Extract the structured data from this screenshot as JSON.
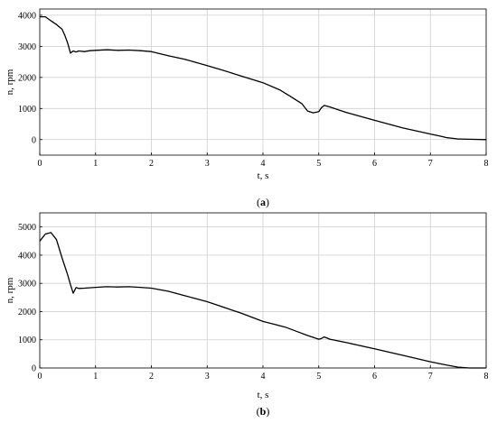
{
  "chart_data": [
    {
      "type": "line",
      "caption": "a",
      "xlabel": "t, s",
      "ylabel": "n, rpm",
      "xlim": [
        0,
        8
      ],
      "ylim": [
        -500,
        4200
      ],
      "xticks": [
        0,
        1,
        2,
        3,
        4,
        5,
        6,
        7,
        8
      ],
      "yticks": [
        0,
        1000,
        2000,
        3000,
        4000
      ],
      "grid": true,
      "series": [
        {
          "x": [
            0,
            0.1,
            0.2,
            0.3,
            0.4,
            0.45,
            0.5,
            0.55,
            0.6,
            0.65,
            0.7,
            0.8,
            0.9,
            1.0,
            1.2,
            1.4,
            1.6,
            1.8,
            2.0,
            2.3,
            2.6,
            3.0,
            3.3,
            3.6,
            4.0,
            4.3,
            4.5,
            4.7,
            4.8,
            4.9,
            5.0,
            5.05,
            5.1,
            5.2,
            5.5,
            6.0,
            6.5,
            7.0,
            7.2,
            7.3,
            7.4,
            7.5,
            7.7,
            8.0
          ],
          "y": [
            3950,
            3950,
            3820,
            3700,
            3550,
            3350,
            3100,
            2780,
            2850,
            2820,
            2850,
            2830,
            2860,
            2870,
            2890,
            2870,
            2880,
            2860,
            2830,
            2700,
            2580,
            2380,
            2220,
            2050,
            1830,
            1600,
            1380,
            1150,
            920,
            860,
            900,
            1030,
            1100,
            1050,
            870,
            620,
            380,
            180,
            100,
            60,
            40,
            20,
            10,
            0
          ]
        }
      ]
    },
    {
      "type": "line",
      "caption": "b",
      "xlabel": "t, s",
      "ylabel": "n, rpm",
      "xlim": [
        0,
        8
      ],
      "ylim": [
        0,
        5500
      ],
      "xticks": [
        0,
        1,
        2,
        3,
        4,
        5,
        6,
        7,
        8
      ],
      "yticks": [
        0,
        1000,
        2000,
        3000,
        4000,
        5000
      ],
      "grid": true,
      "series": [
        {
          "x": [
            0,
            0.1,
            0.2,
            0.3,
            0.4,
            0.5,
            0.55,
            0.6,
            0.65,
            0.7,
            0.8,
            1.0,
            1.2,
            1.4,
            1.6,
            1.8,
            2.0,
            2.3,
            2.6,
            3.0,
            3.3,
            3.6,
            4.0,
            4.2,
            4.4,
            4.6,
            4.8,
            5.0,
            5.05,
            5.1,
            5.2,
            5.5,
            6.0,
            6.5,
            7.0,
            7.3,
            7.5,
            7.7,
            8.0
          ],
          "y": [
            4500,
            4750,
            4800,
            4550,
            3900,
            3300,
            2950,
            2650,
            2850,
            2820,
            2830,
            2860,
            2880,
            2870,
            2880,
            2860,
            2830,
            2720,
            2560,
            2350,
            2150,
            1950,
            1650,
            1550,
            1450,
            1300,
            1150,
            1020,
            1050,
            1100,
            1020,
            900,
            680,
            450,
            220,
            100,
            30,
            0,
            0
          ]
        }
      ]
    }
  ]
}
